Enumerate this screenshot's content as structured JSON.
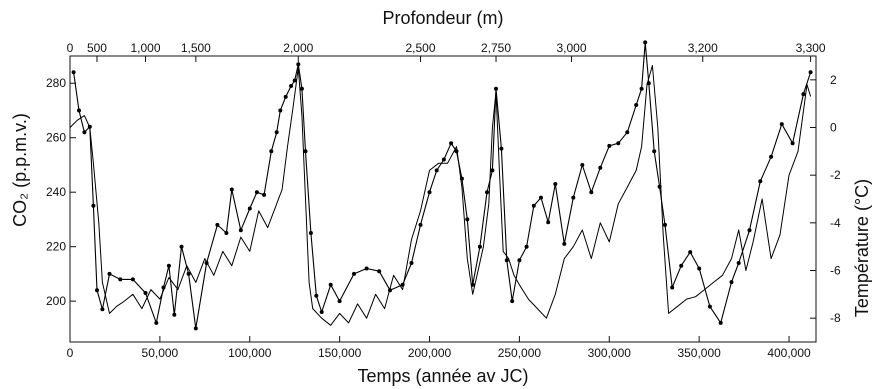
{
  "chart_data": {
    "type": "line",
    "title": "",
    "top_axis": {
      "label": "Profondeur (m)",
      "tick_labels": [
        "0",
        "500",
        "1,000",
        "1,500",
        "2,000",
        "2,500",
        "2,750",
        "3,000",
        "3,200",
        "3,300"
      ],
      "tick_ages": [
        0,
        15000,
        42000,
        70000,
        127000,
        195000,
        237000,
        279000,
        352000,
        412000
      ]
    },
    "x_axis": {
      "label": "Temps (année av JC)",
      "range": [
        0,
        415000
      ],
      "tick_values": [
        0,
        50000,
        100000,
        150000,
        200000,
        250000,
        300000,
        350000,
        400000
      ],
      "tick_labels": [
        "0",
        "50,000",
        "100,000",
        "150,000",
        "200,000",
        "250,000",
        "300,000",
        "350,000",
        "400,000"
      ]
    },
    "left_axis": {
      "label": "CO₂ (p.p.m.v.)",
      "range": [
        185,
        290
      ],
      "tick_values": [
        200,
        220,
        240,
        260,
        280
      ],
      "tick_labels": [
        "200",
        "220",
        "240",
        "260",
        "280"
      ]
    },
    "right_axis": {
      "label": "Température (°C)",
      "range": [
        -9,
        3
      ],
      "tick_values": [
        2,
        0,
        -2,
        -4,
        -6,
        -8
      ],
      "tick_labels": [
        "2",
        "0",
        "-2",
        "-4",
        "-6",
        "-8"
      ]
    },
    "grid": false,
    "legend": "none",
    "series": [
      {
        "axis": "left",
        "marker": "dot",
        "color": "#000000",
        "x": [
          2000,
          5000,
          8000,
          11000,
          13000,
          15000,
          18000,
          22000,
          28000,
          35000,
          42000,
          48000,
          52000,
          55000,
          58000,
          62000,
          66000,
          70000,
          76000,
          82000,
          87000,
          90000,
          95000,
          100000,
          104000,
          108000,
          112000,
          115000,
          117000,
          120000,
          123000,
          125000,
          127000,
          129000,
          131000,
          134000,
          137000,
          140000,
          145000,
          150000,
          158000,
          165000,
          172000,
          178000,
          185000,
          190000,
          195000,
          200000,
          204000,
          208000,
          212000,
          215000,
          218000,
          221000,
          224000,
          228000,
          232000,
          235000,
          237000,
          240000,
          243000,
          246000,
          250000,
          254000,
          258000,
          262000,
          266000,
          270000,
          275000,
          280000,
          285000,
          290000,
          295000,
          300000,
          305000,
          310000,
          315000,
          318000,
          320000,
          322000,
          325000,
          328000,
          331000,
          335000,
          340000,
          345000,
          350000,
          356000,
          362000,
          368000,
          372000,
          378000,
          384000,
          390000,
          396000,
          402000,
          408000,
          412000
        ],
        "values": [
          284,
          270,
          262,
          264,
          235,
          204,
          197,
          210,
          208,
          208,
          203,
          192,
          205,
          213,
          195,
          220,
          210,
          190,
          214,
          228,
          225,
          241,
          226,
          234,
          240,
          239,
          255,
          262,
          270,
          275,
          279,
          281,
          287,
          278,
          255,
          225,
          202,
          196,
          206,
          200,
          210,
          212,
          211,
          204,
          206,
          214,
          228,
          240,
          248,
          252,
          258,
          255,
          245,
          230,
          206,
          220,
          240,
          248,
          278,
          256,
          215,
          200,
          215,
          220,
          235,
          238,
          229,
          243,
          221,
          238,
          250,
          240,
          249,
          257,
          258,
          262,
          272,
          278,
          295,
          280,
          255,
          242,
          228,
          205,
          213,
          218,
          212,
          198,
          192,
          207,
          214,
          226,
          244,
          253,
          265,
          258,
          276,
          284
        ]
      },
      {
        "axis": "right",
        "marker": "none",
        "color": "#000000",
        "x": [
          0,
          4000,
          8000,
          11000,
          13000,
          16000,
          18000,
          22000,
          26000,
          30000,
          35000,
          40000,
          45000,
          50000,
          55000,
          60000,
          65000,
          70000,
          75000,
          80000,
          85000,
          90000,
          95000,
          100000,
          105000,
          110000,
          115000,
          118000,
          121000,
          124000,
          127000,
          129000,
          131000,
          133000,
          135000,
          140000,
          145000,
          150000,
          155000,
          160000,
          165000,
          170000,
          175000,
          180000,
          185000,
          190000,
          195000,
          200000,
          205000,
          210000,
          215000,
          218000,
          221000,
          224000,
          227000,
          230000,
          233000,
          235000,
          237000,
          239000,
          241000,
          244000,
          247000,
          250000,
          255000,
          260000,
          265000,
          270000,
          275000,
          280000,
          285000,
          290000,
          295000,
          300000,
          305000,
          310000,
          315000,
          318000,
          321000,
          324000,
          327000,
          330000,
          333000,
          338000,
          343000,
          348000,
          353000,
          358000,
          363000,
          368000,
          372000,
          376000,
          380000,
          385000,
          390000,
          395000,
          400000,
          405000,
          410000,
          412000
        ],
        "values": [
          0,
          0.3,
          0.5,
          0,
          -1.5,
          -4,
          -6.5,
          -7.8,
          -7.5,
          -7.3,
          -7,
          -7.6,
          -6.8,
          -7.2,
          -6.3,
          -6.8,
          -5.8,
          -6.5,
          -5.5,
          -6.2,
          -5.2,
          -5.8,
          -4.6,
          -5.2,
          -3.5,
          -4.2,
          -3.2,
          -2.6,
          -0.8,
          0.8,
          2.5,
          0.5,
          -3,
          -6.5,
          -7.6,
          -8,
          -8.3,
          -7.8,
          -8.2,
          -7.4,
          -8,
          -7,
          -7.6,
          -6.2,
          -6.8,
          -4.7,
          -3.5,
          -1.8,
          -1.5,
          -1.5,
          -0.8,
          -2.5,
          -5.5,
          -7,
          -6,
          -5,
          -3.2,
          0,
          1.5,
          -2,
          -5.2,
          -5.5,
          -6.2,
          -6.6,
          -7.2,
          -7.6,
          -8,
          -7,
          -5.5,
          -5,
          -4.3,
          -5.5,
          -4,
          -4.8,
          -3.2,
          -2.5,
          -1.8,
          -0.8,
          1.8,
          2.6,
          0,
          -4.5,
          -7.8,
          -7.5,
          -7.2,
          -7.1,
          -6.8,
          -6.5,
          -6.2,
          -5.5,
          -4.3,
          -6,
          -4.8,
          -3,
          -5.5,
          -4.5,
          -2,
          -1,
          1.8,
          1.3
        ]
      }
    ]
  }
}
